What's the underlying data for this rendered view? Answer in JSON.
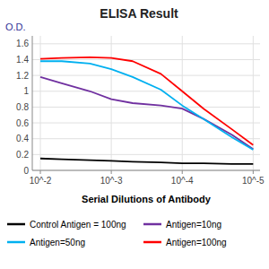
{
  "chart_data": {
    "type": "line",
    "title": "ELISA Result",
    "x_label": "Serial Dilutions of Antibody",
    "y_label": "O.D.",
    "x": [
      0.01,
      0.005,
      0.002,
      0.001,
      0.0005,
      0.0002,
      0.0001,
      5e-05,
      2e-05,
      1e-05
    ],
    "series": [
      {
        "name": "Control Antigen = 100ng",
        "color": "#000000",
        "values": [
          0.15,
          0.14,
          0.13,
          0.12,
          0.11,
          0.1,
          0.09,
          0.09,
          0.08,
          0.08
        ]
      },
      {
        "name": "Antigen=10ng",
        "color": "#7030a0",
        "values": [
          1.18,
          1.1,
          1.0,
          0.9,
          0.85,
          0.82,
          0.78,
          0.65,
          0.45,
          0.27
        ]
      },
      {
        "name": "Antigen=50ng",
        "color": "#00b0f0",
        "values": [
          1.38,
          1.38,
          1.35,
          1.28,
          1.18,
          1.02,
          0.82,
          0.65,
          0.42,
          0.26
        ]
      },
      {
        "name": "Antigen=100ng",
        "color": "#ff0000",
        "values": [
          1.41,
          1.42,
          1.43,
          1.42,
          1.38,
          1.22,
          1.0,
          0.78,
          0.52,
          0.32
        ]
      }
    ],
    "xlim": [
      0.013,
      8e-06
    ],
    "ylim": [
      0,
      1.7
    ],
    "xticks": [
      {
        "value": 0.01,
        "label": "10^-2"
      },
      {
        "value": 0.001,
        "label": "10^-3"
      },
      {
        "value": 0.0001,
        "label": "10^-4"
      },
      {
        "value": 1e-05,
        "label": "10^-5"
      }
    ],
    "yticks": [
      0,
      0.2,
      0.4,
      0.6,
      0.8,
      1,
      1.2,
      1.4,
      1.6
    ],
    "log": "x",
    "grid": true,
    "legend": "bottom"
  }
}
